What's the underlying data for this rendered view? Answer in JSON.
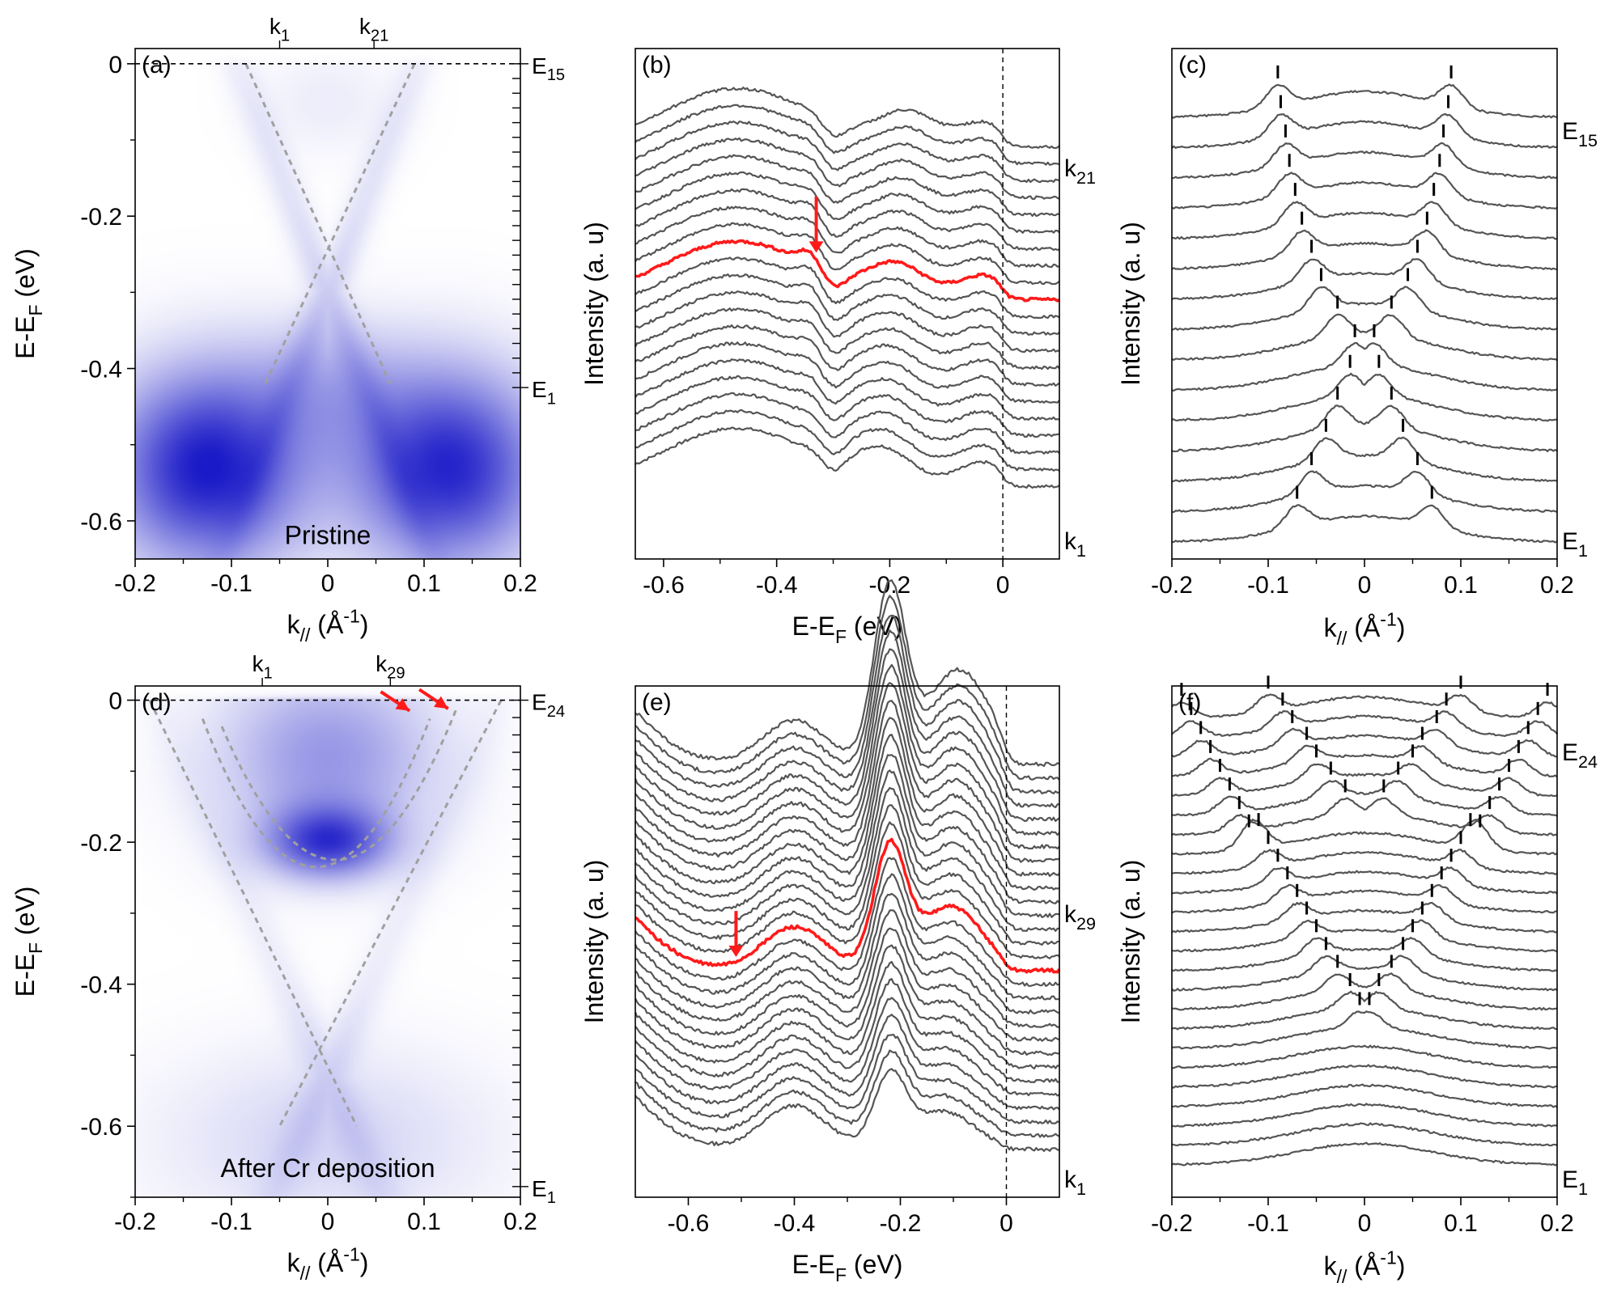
{
  "figure": {
    "colors": {
      "curve": "#555555",
      "highlight": "#ff1a1a",
      "guide": "#a0a0a0",
      "intensity": "#1a1acc",
      "arrow": "#ff1a1a"
    }
  },
  "chart_data": [
    {
      "id": "a",
      "type": "heatmap",
      "panel_label": "(a)",
      "xlabel_main": "k",
      "xlabel_sub": "//",
      "xlabel_unit": " (Å",
      "xlabel_exp": "-1",
      "xlabel_close": ")",
      "ylabel_main": "E-E",
      "ylabel_sub": "F",
      "ylabel_unit": " (eV)",
      "xlim": [
        -0.2,
        0.2
      ],
      "ylim": [
        -0.65,
        0.02
      ],
      "xticks": [
        -0.2,
        -0.1,
        0,
        0.1,
        0.2
      ],
      "xtick_labels": [
        "-0.2",
        "-0.1",
        "0",
        "0.1",
        "0.2"
      ],
      "yticks": [
        0,
        -0.2,
        -0.4,
        -0.6
      ],
      "ytick_labels": [
        "0",
        "-0.2",
        "-0.4",
        "-0.6"
      ],
      "fermi_level": 0,
      "top_markers": [
        {
          "k": -0.05,
          "label": "k",
          "sub": "1"
        },
        {
          "k": 0.048,
          "label": "k",
          "sub": "21"
        }
      ],
      "right_markers": [
        {
          "e": 0,
          "label": "E",
          "sub": "15"
        },
        {
          "e": -0.425,
          "label": "E",
          "sub": "1"
        }
      ],
      "right_ticks_count": 23,
      "annotation": "Pristine",
      "annotation_pos": [
        0.0,
        -0.62
      ],
      "dirac_point": -0.3,
      "dirac_half_width": 0.095,
      "guide_lines": [
        {
          "points": [
            [
              -0.085,
              0
            ],
            [
              0.065,
              -0.42
            ]
          ]
        },
        {
          "points": [
            [
              0.09,
              0
            ],
            [
              -0.065,
              -0.42
            ]
          ]
        }
      ],
      "intensity_blobs": [
        {
          "k": -0.125,
          "e": -0.53,
          "sk": 0.07,
          "se": 0.09,
          "amp": 1.0
        },
        {
          "k": 0.125,
          "e": -0.53,
          "sk": 0.07,
          "se": 0.09,
          "amp": 0.95
        },
        {
          "k": 0,
          "e": -0.42,
          "sk": 0.06,
          "se": 0.06,
          "amp": 0.25
        },
        {
          "k": 0,
          "e": -0.05,
          "sk": 0.05,
          "se": 0.05,
          "amp": 0.08
        }
      ],
      "dispersion_bands": [
        {
          "e0": -0.3,
          "v": 3.2,
          "amp": 0.18,
          "w": 0.014
        }
      ],
      "arrows": []
    },
    {
      "id": "b",
      "type": "line",
      "panel_label": "(b)",
      "xlabel_main": "E-E",
      "xlabel_sub": "F",
      "xlabel_unit": " (eV)",
      "ylabel": "Intensity (a. u)",
      "xlim": [
        -0.65,
        0.1
      ],
      "xticks": [
        -0.6,
        -0.4,
        -0.2,
        0
      ],
      "xtick_labels": [
        "-0.6",
        "-0.4",
        "-0.2",
        "0"
      ],
      "n_curves": 21,
      "highlight_index": 11,
      "top_label": {
        "label": "k",
        "sub": "21"
      },
      "bottom_label": {
        "label": "k",
        "sub": "1"
      },
      "vline": 0,
      "features": [
        {
          "e": -0.47,
          "w": 0.13,
          "amp": 1.0
        },
        {
          "e": -0.34,
          "w": 0.02,
          "amp": 0.25
        },
        {
          "e": -0.21,
          "w": 0.05,
          "amp": 0.55
        },
        {
          "e": -0.03,
          "w": 0.05,
          "amp": 0.42
        }
      ],
      "arrows": [
        {
          "x": -0.33,
          "from": 0.71,
          "to": 0.6
        }
      ]
    },
    {
      "id": "c",
      "type": "line",
      "panel_label": "(c)",
      "xlabel_main": "k",
      "xlabel_sub": "//",
      "xlabel_unit": " (Å",
      "xlabel_exp": "-1",
      "xlabel_close": ")",
      "ylabel": "Intensity (a. u)",
      "xlim": [
        -0.2,
        0.2
      ],
      "xticks": [
        -0.2,
        -0.1,
        0,
        0.1,
        0.2
      ],
      "xtick_labels": [
        "-0.2",
        "-0.1",
        "0",
        "0.1",
        "0.2"
      ],
      "n_curves": 15,
      "top_label": {
        "label": "E",
        "sub": "15"
      },
      "bottom_label": {
        "label": "E",
        "sub": "1"
      },
      "peak_k": [
        0.07,
        0.055,
        0.04,
        0.028,
        0.015,
        0.01,
        0.028,
        0.045,
        0.055,
        0.065,
        0.072,
        0.078,
        0.082,
        0.087,
        0.09
      ]
    },
    {
      "id": "d",
      "type": "heatmap",
      "panel_label": "(d)",
      "xlabel_main": "k",
      "xlabel_sub": "//",
      "xlabel_unit": " (Å",
      "xlabel_exp": "-1",
      "xlabel_close": ")",
      "ylabel_main": "E-E",
      "ylabel_sub": "F",
      "ylabel_unit": " (eV)",
      "xlim": [
        -0.2,
        0.2
      ],
      "ylim": [
        -0.7,
        0.02
      ],
      "xticks": [
        -0.2,
        -0.1,
        0,
        0.1,
        0.2
      ],
      "xtick_labels": [
        "-0.2",
        "-0.1",
        "0",
        "0.1",
        "0.2"
      ],
      "yticks": [
        0,
        -0.2,
        -0.4,
        -0.6
      ],
      "ytick_labels": [
        "0",
        "-0.2",
        "-0.4",
        "-0.6"
      ],
      "fermi_level": 0,
      "top_markers": [
        {
          "k": -0.068,
          "label": "k",
          "sub": "1"
        },
        {
          "k": 0.065,
          "label": "k",
          "sub": "29"
        }
      ],
      "right_markers": [
        {
          "e": 0,
          "label": "E",
          "sub": "24"
        },
        {
          "e": -0.685,
          "label": "E",
          "sub": "1"
        }
      ],
      "right_ticks_count": 29,
      "annotation": "After Cr deposition",
      "annotation_pos": [
        0.0,
        -0.66
      ],
      "guide_lines": [
        {
          "points": [
            [
              -0.185,
              0
            ],
            [
              0.03,
              -0.6
            ]
          ]
        },
        {
          "points": [
            [
              0.18,
              0
            ],
            [
              -0.05,
              -0.6
            ]
          ]
        },
        {
          "parabola": true,
          "k0": -0.012,
          "e0": -0.235,
          "a": 15.0,
          "kmin": -0.13,
          "kmax": 0.11
        },
        {
          "parabola": true,
          "k0": 0.008,
          "e0": -0.225,
          "a": 13.5,
          "kmin": -0.11,
          "kmax": 0.135
        }
      ],
      "intensity_blobs": [
        {
          "k": 0,
          "e": -0.2,
          "sk": 0.045,
          "se": 0.035,
          "amp": 0.75
        },
        {
          "k": 0,
          "e": -0.08,
          "sk": 0.08,
          "se": 0.09,
          "amp": 0.45
        },
        {
          "k": 0,
          "e": -0.62,
          "sk": 0.12,
          "se": 0.09,
          "amp": 0.18
        }
      ],
      "dispersion_bands": [
        {
          "e0": -0.53,
          "v": 3.0,
          "amp": 0.12,
          "w": 0.016
        }
      ],
      "arrows": [
        {
          "from": [
            0.055,
            0.012
          ],
          "to": [
            0.085,
            -0.015
          ]
        },
        {
          "from": [
            0.095,
            0.015
          ],
          "to": [
            0.125,
            -0.012
          ]
        }
      ]
    },
    {
      "id": "e",
      "type": "line",
      "panel_label": "(e)",
      "xlabel_main": "E-E",
      "xlabel_sub": "F",
      "xlabel_unit": " (eV)",
      "ylabel": "Intensity (a. u)",
      "xlim": [
        -0.7,
        0.1
      ],
      "xticks": [
        -0.6,
        -0.4,
        -0.2,
        0
      ],
      "xtick_labels": [
        "-0.6",
        "-0.4",
        "-0.2",
        "0"
      ],
      "n_curves": 29,
      "highlight_index": 13,
      "top_label": {
        "label": "k",
        "sub": "29"
      },
      "bottom_label": {
        "label": "k",
        "sub": "1"
      },
      "vline": 0,
      "features": [
        {
          "e": -0.8,
          "w": 0.1,
          "amp": 1.0
        },
        {
          "e": -0.4,
          "w": 0.06,
          "amp": 0.6
        },
        {
          "e": -0.22,
          "w": 0.03,
          "amp": 2.4
        },
        {
          "e": -0.12,
          "w": 0.06,
          "amp": 1.3
        }
      ],
      "arrows": [
        {
          "x": -0.51,
          "from": 0.56,
          "to": 0.47
        }
      ]
    },
    {
      "id": "f",
      "type": "line",
      "panel_label": "(f)",
      "xlabel_main": "k",
      "xlabel_sub": "//",
      "xlabel_unit": " (Å",
      "xlabel_exp": "-1",
      "xlabel_close": ")",
      "ylabel": "Intensity (a. u)",
      "xlim": [
        -0.2,
        0.2
      ],
      "xticks": [
        -0.2,
        -0.1,
        0,
        0.1,
        0.2
      ],
      "xtick_labels": [
        "-0.2",
        "-0.1",
        "0",
        "0.1",
        "0.2"
      ],
      "n_curves": 24,
      "top_label": {
        "label": "E",
        "sub": "24"
      },
      "bottom_label": {
        "label": "E",
        "sub": "1"
      },
      "inner_peak_k": [
        null,
        null,
        null,
        null,
        null,
        null,
        0.005,
        0.015,
        0.028,
        0.04,
        0.05,
        0.06,
        0.07,
        0.08,
        0.09,
        0.1,
        0.11,
        0.02,
        0.035,
        0.05,
        0.06,
        0.075,
        0.085,
        0.1
      ],
      "outer_peak_k": [
        null,
        null,
        null,
        null,
        null,
        null,
        null,
        null,
        null,
        null,
        null,
        null,
        null,
        null,
        null,
        null,
        0.12,
        0.13,
        0.14,
        0.15,
        0.16,
        0.17,
        0.18,
        0.19
      ]
    }
  ]
}
